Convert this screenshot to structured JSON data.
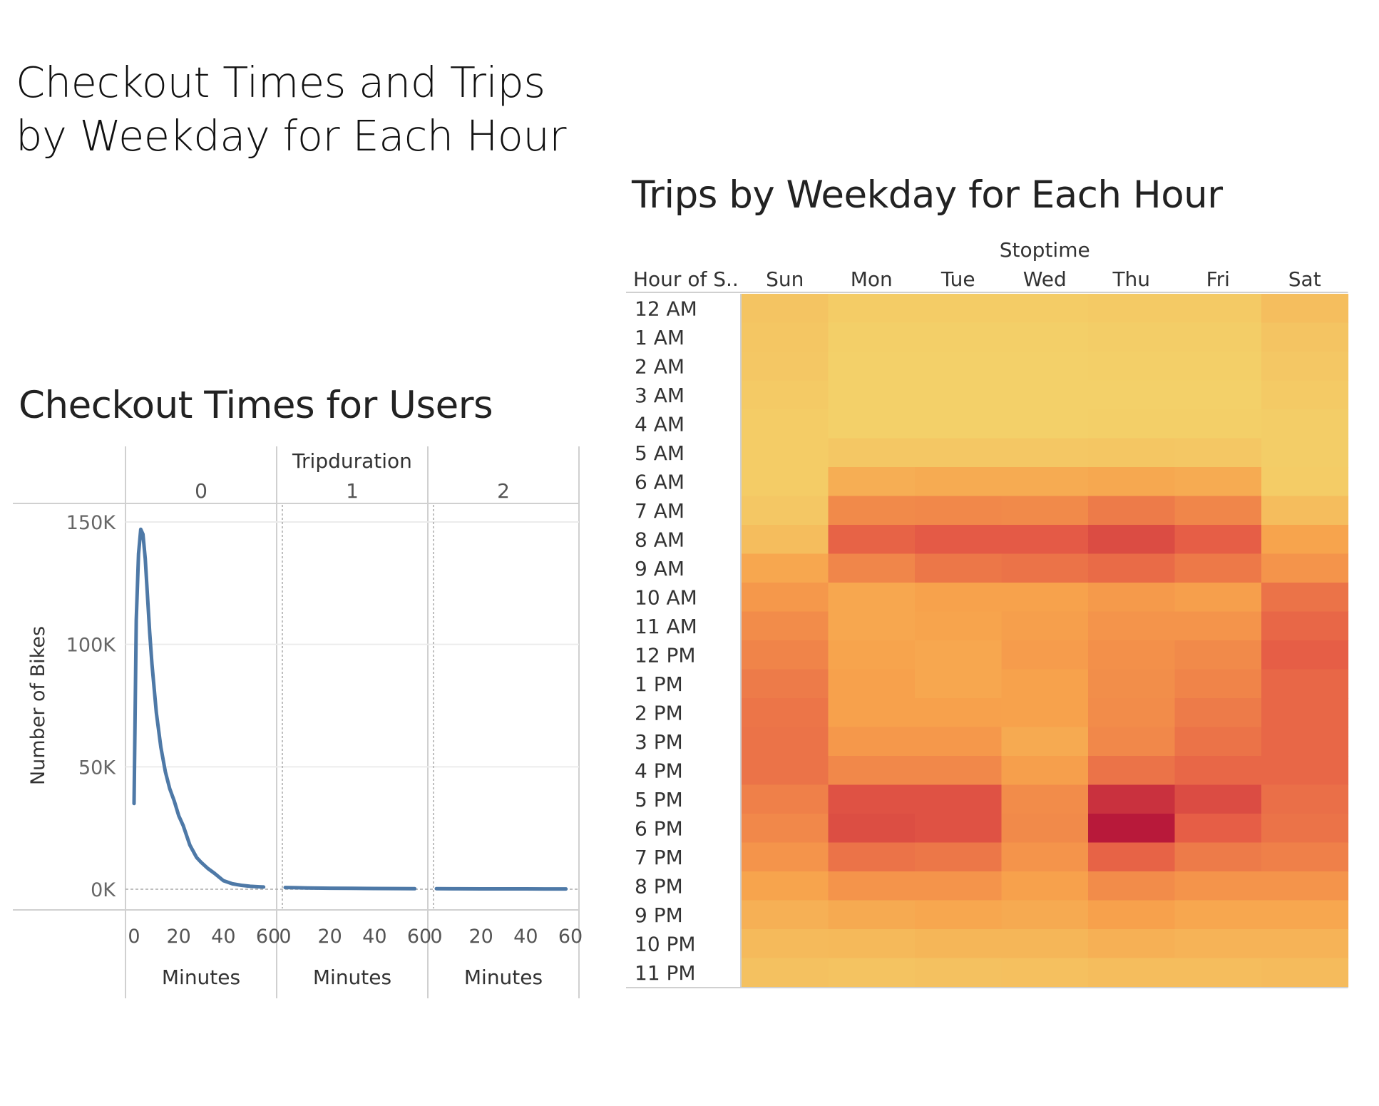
{
  "dashboard": {
    "title_line1": "Checkout Times and Trips",
    "title_line2": "by Weekday for Each Hour"
  },
  "chart_data": [
    {
      "type": "line",
      "title": "Checkout Times for Users",
      "facet_header": "Tripduration",
      "facets": [
        "0",
        "1",
        "2"
      ],
      "xlabel": "Minutes",
      "ylabel": "Number of Bikes",
      "xlim": [
        0,
        60
      ],
      "ylim": [
        0,
        150000
      ],
      "x_ticks": [
        "0",
        "20",
        "40",
        "60"
      ],
      "y_ticks": [
        {
          "value": 0,
          "label": "0K"
        },
        {
          "value": 50000,
          "label": "50K"
        },
        {
          "value": 100000,
          "label": "100K"
        },
        {
          "value": 150000,
          "label": "150K"
        }
      ],
      "color": "#4e79a7",
      "series": [
        {
          "facet": "0",
          "x": [
            0,
            1,
            2,
            3,
            4,
            5,
            6,
            7,
            8,
            10,
            12,
            14,
            16,
            18,
            20,
            22,
            25,
            28,
            30,
            33,
            36,
            40,
            44,
            48,
            52,
            56,
            58
          ],
          "values": [
            35000,
            110000,
            137000,
            147000,
            145000,
            135000,
            120000,
            105000,
            92000,
            72000,
            58000,
            48000,
            41000,
            36000,
            30000,
            26000,
            18000,
            13000,
            11000,
            8500,
            6500,
            3500,
            2200,
            1600,
            1200,
            1000,
            900
          ]
        },
        {
          "facet": "1",
          "x": [
            0,
            5,
            10,
            20,
            30,
            40,
            50,
            58
          ],
          "values": [
            700,
            600,
            500,
            420,
            350,
            300,
            250,
            200
          ]
        },
        {
          "facet": "2",
          "x": [
            0,
            10,
            20,
            30,
            40,
            50,
            58
          ],
          "values": [
            200,
            180,
            160,
            150,
            140,
            130,
            120
          ]
        }
      ]
    },
    {
      "type": "heatmap",
      "title": "Trips by Weekday for Each Hour",
      "column_header": "Stoptime",
      "row_header": "Hour of S..",
      "columns": [
        "Sun",
        "Mon",
        "Tue",
        "Wed",
        "Thu",
        "Fri",
        "Sat"
      ],
      "rows": [
        "12 AM",
        "1 AM",
        "2 AM",
        "3 AM",
        "4 AM",
        "5 AM",
        "6 AM",
        "7 AM",
        "8 AM",
        "9 AM",
        "10 AM",
        "11 AM",
        "12 PM",
        "1 PM",
        "2 PM",
        "3 PM",
        "4 PM",
        "5 PM",
        "6 PM",
        "7 PM",
        "8 PM",
        "9 PM",
        "10 PM",
        "11 PM"
      ],
      "values": [
        [
          0.1,
          0.05,
          0.05,
          0.05,
          0.06,
          0.06,
          0.14
        ],
        [
          0.09,
          0.03,
          0.03,
          0.03,
          0.04,
          0.04,
          0.1
        ],
        [
          0.08,
          0.02,
          0.02,
          0.02,
          0.03,
          0.03,
          0.08
        ],
        [
          0.06,
          0.02,
          0.02,
          0.02,
          0.02,
          0.02,
          0.06
        ],
        [
          0.05,
          0.02,
          0.02,
          0.02,
          0.03,
          0.03,
          0.04
        ],
        [
          0.05,
          0.08,
          0.08,
          0.08,
          0.09,
          0.08,
          0.04
        ],
        [
          0.05,
          0.25,
          0.27,
          0.27,
          0.29,
          0.27,
          0.05
        ],
        [
          0.08,
          0.45,
          0.46,
          0.45,
          0.52,
          0.47,
          0.15
        ],
        [
          0.15,
          0.64,
          0.68,
          0.68,
          0.75,
          0.66,
          0.32
        ],
        [
          0.3,
          0.47,
          0.54,
          0.56,
          0.6,
          0.53,
          0.4
        ],
        [
          0.38,
          0.3,
          0.33,
          0.33,
          0.37,
          0.35,
          0.56
        ],
        [
          0.44,
          0.3,
          0.32,
          0.35,
          0.4,
          0.4,
          0.62
        ],
        [
          0.48,
          0.32,
          0.3,
          0.36,
          0.42,
          0.45,
          0.66
        ],
        [
          0.52,
          0.34,
          0.3,
          0.33,
          0.43,
          0.48,
          0.62
        ],
        [
          0.55,
          0.34,
          0.34,
          0.33,
          0.44,
          0.52,
          0.62
        ],
        [
          0.56,
          0.38,
          0.38,
          0.28,
          0.46,
          0.56,
          0.62
        ],
        [
          0.56,
          0.46,
          0.46,
          0.35,
          0.56,
          0.62,
          0.62
        ],
        [
          0.5,
          0.72,
          0.72,
          0.44,
          0.88,
          0.75,
          0.58
        ],
        [
          0.46,
          0.74,
          0.72,
          0.45,
          1.0,
          0.66,
          0.56
        ],
        [
          0.4,
          0.56,
          0.54,
          0.4,
          0.64,
          0.52,
          0.5
        ],
        [
          0.32,
          0.4,
          0.4,
          0.34,
          0.44,
          0.4,
          0.4
        ],
        [
          0.24,
          0.28,
          0.3,
          0.28,
          0.34,
          0.3,
          0.3
        ],
        [
          0.17,
          0.18,
          0.2,
          0.2,
          0.24,
          0.22,
          0.22
        ],
        [
          0.12,
          0.11,
          0.12,
          0.13,
          0.15,
          0.15,
          0.16
        ]
      ],
      "color_scale": [
        "#f3d36b",
        "#f7a24c",
        "#e65d46",
        "#b8193a"
      ]
    }
  ]
}
